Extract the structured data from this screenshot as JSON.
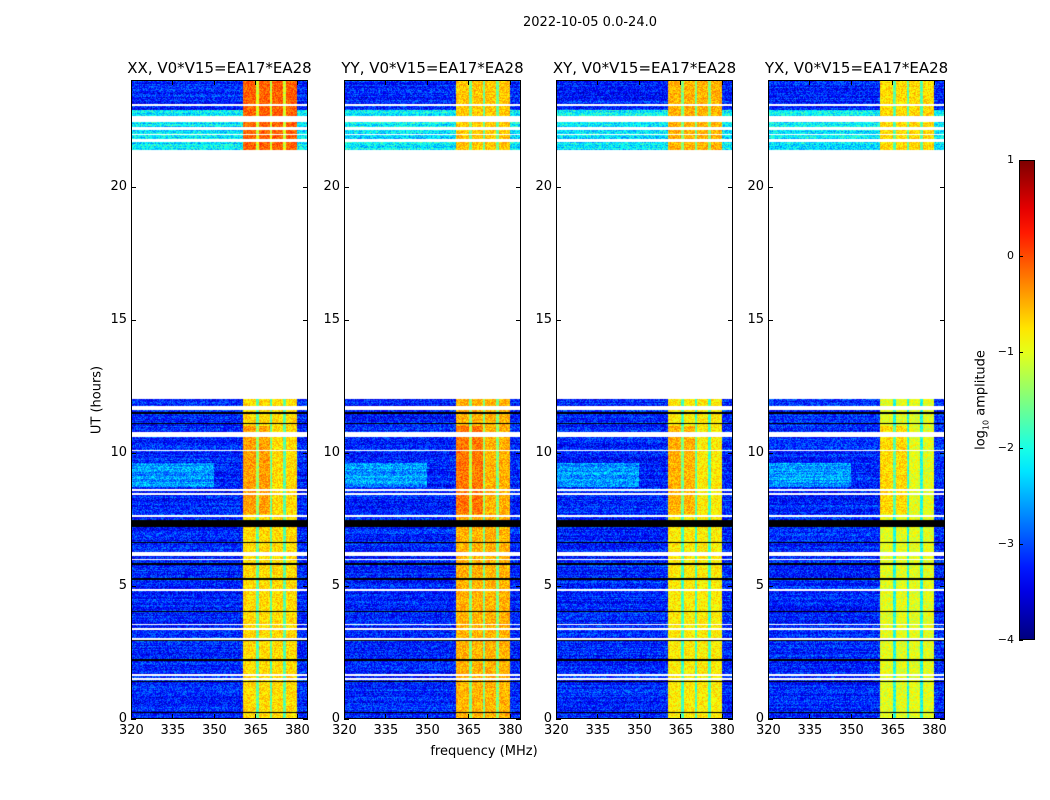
{
  "chart_data": {
    "type": "heatmap",
    "title": "2022-10-05 0.0-24.0",
    "xlabel": "frequency (MHz)",
    "ylabel": "UT (hours)",
    "xlim": [
      320,
      384
    ],
    "ylim": [
      0,
      24
    ],
    "xticks": [
      320,
      335,
      350,
      365,
      380
    ],
    "yticks": [
      0,
      5,
      10,
      15,
      20
    ],
    "colorbar": {
      "label_prefix": "log",
      "label_sub": "10",
      "label_suffix": " amplitude",
      "range": [
        -4,
        1
      ],
      "ticks": [
        1,
        0,
        -1,
        -2,
        -3,
        -4
      ],
      "tick_labels": [
        "1",
        "0",
        "−1",
        "−2",
        "−3",
        "−4"
      ],
      "colormap": "jet"
    },
    "panels": [
      {
        "title": "XX, V0*V15=EA17*EA28",
        "band_level": -0.7,
        "top_band_level": -0.1
      },
      {
        "title": "YY, V0*V15=EA17*EA28",
        "band_level": -0.5,
        "top_band_level": -0.6
      },
      {
        "title": "XY, V0*V15=EA17*EA28",
        "band_level": -0.8,
        "top_band_level": -0.5
      },
      {
        "title": "YX, V0*V15=EA17*EA28",
        "band_level": -1.0,
        "top_band_level": -0.7
      }
    ],
    "data_coverage_hours": [
      [
        0,
        12.0
      ],
      [
        21.4,
        24
      ]
    ],
    "bright_band_mhz": [
      360.5,
      380.5
    ],
    "background_level": -3.2,
    "missing_rows_hours": [
      [
        11.62,
        11.75
      ],
      [
        10.6,
        10.78
      ],
      [
        10.05,
        10.1
      ],
      [
        8.55,
        8.62
      ],
      [
        8.42,
        8.48
      ],
      [
        7.58,
        7.66
      ],
      [
        6.12,
        6.25
      ],
      [
        5.95,
        6.0
      ],
      [
        4.8,
        4.85
      ],
      [
        3.5,
        3.56
      ],
      [
        3.3,
        3.38
      ],
      [
        2.95,
        3.0
      ],
      [
        1.6,
        1.66
      ],
      [
        1.45,
        1.52
      ]
    ],
    "flagged_rows_hours": [
      [
        11.45,
        11.52
      ],
      [
        11.08,
        11.13
      ],
      [
        7.2,
        7.46
      ],
      [
        6.58,
        6.62
      ],
      [
        5.78,
        5.84
      ],
      [
        5.2,
        5.26
      ],
      [
        4.0,
        4.04
      ],
      [
        2.9,
        2.93
      ],
      [
        2.15,
        2.22
      ],
      [
        1.35,
        1.4
      ],
      [
        0.18,
        0.24
      ]
    ],
    "top_section_gaps_hours": [
      [
        23.05,
        23.12
      ],
      [
        22.45,
        22.7
      ],
      [
        22.15,
        22.25
      ],
      [
        21.95,
        22.0
      ],
      [
        21.7,
        21.8
      ]
    ]
  }
}
